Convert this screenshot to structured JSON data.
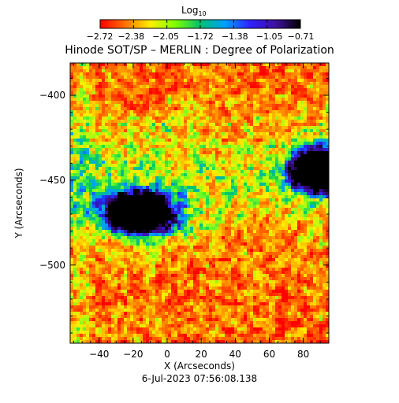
{
  "chart_data": {
    "type": "heatmap",
    "title": "Hinode SOT/SP – MERLIN : Degree of Polarization",
    "xlabel": "X (Arcseconds)",
    "ylabel": "Y (Arcseconds)",
    "timestamp": "6-Jul-2023 07:56:08.138",
    "colorbar": {
      "label_main": "Log",
      "label_sub": "10",
      "ticks": [
        "−2.72",
        "−2.38",
        "−2.05",
        "−1.72",
        "−1.38",
        "−1.05",
        "−0.71"
      ],
      "range": [
        -2.72,
        -0.71
      ],
      "colors": [
        "#ff0000",
        "#ff7000",
        "#ffee00",
        "#7fff00",
        "#00c070",
        "#00a0ff",
        "#3020ff",
        "#4010a0",
        "#000000"
      ]
    },
    "xlim": [
      -57,
      95
    ],
    "ylim": [
      -546,
      -381
    ],
    "x_ticks": [
      {
        "value": -40,
        "label": "−40"
      },
      {
        "value": -20,
        "label": "−20"
      },
      {
        "value": 0,
        "label": "0"
      },
      {
        "value": 20,
        "label": "20"
      },
      {
        "value": 40,
        "label": "40"
      },
      {
        "value": 60,
        "label": "60"
      },
      {
        "value": 80,
        "label": "80"
      }
    ],
    "y_ticks": [
      {
        "value": -400,
        "label": "−400"
      },
      {
        "value": -450,
        "label": "−450"
      },
      {
        "value": -500,
        "label": "−500"
      }
    ],
    "features": [
      {
        "type": "spot",
        "x": -17,
        "y": -469,
        "rx": 18,
        "ry": 11,
        "value": -0.71
      },
      {
        "type": "spot",
        "x": 88,
        "y": -443,
        "rx": 14,
        "ry": 11,
        "value": -0.75
      }
    ]
  }
}
